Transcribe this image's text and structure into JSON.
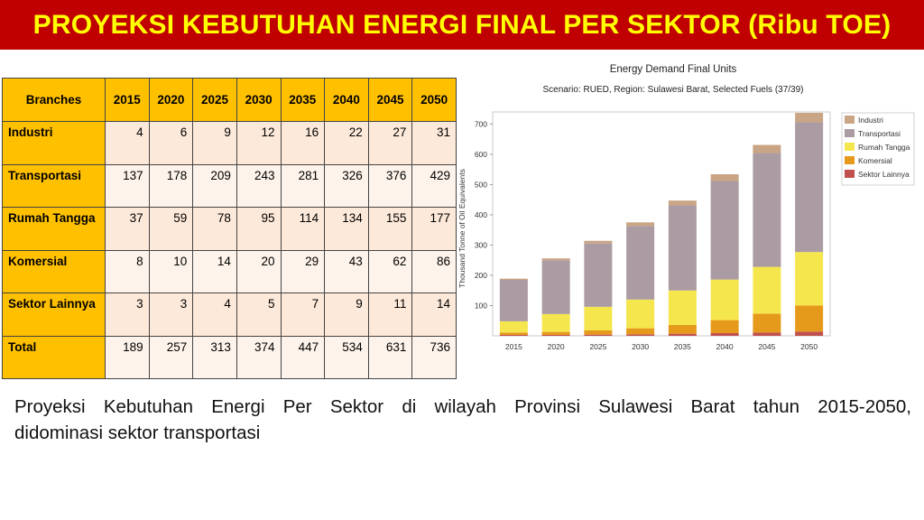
{
  "title": "PROYEKSI KEBUTUHAN ENERGI FINAL PER SEKTOR (Ribu TOE)",
  "table": {
    "header": [
      "Branches",
      "2015",
      "2020",
      "2025",
      "2030",
      "2035",
      "2040",
      "2045",
      "2050"
    ],
    "rows": [
      {
        "name": "Industri",
        "values": [
          "4",
          "6",
          "9",
          "12",
          "16",
          "22",
          "27",
          "31"
        ]
      },
      {
        "name": "Transportasi",
        "values": [
          "137",
          "178",
          "209",
          "243",
          "281",
          "326",
          "376",
          "429"
        ]
      },
      {
        "name": "Rumah Tangga",
        "values": [
          "37",
          "59",
          "78",
          "95",
          "114",
          "134",
          "155",
          "177"
        ]
      },
      {
        "name": "Komersial",
        "values": [
          "8",
          "10",
          "14",
          "20",
          "29",
          "43",
          "62",
          "86"
        ]
      },
      {
        "name": "Sektor Lainnya",
        "values": [
          "3",
          "3",
          "4",
          "5",
          "7",
          "9",
          "11",
          "14"
        ]
      },
      {
        "name": "Total",
        "values": [
          "189",
          "257",
          "313",
          "374",
          "447",
          "534",
          "631",
          "736"
        ]
      }
    ]
  },
  "chart_data": {
    "type": "bar",
    "stacked": true,
    "title": "Energy Demand Final Units",
    "subtitle": "Scenario: RUED, Region: Sulawesi Barat, Selected Fuels (37/39)",
    "xlabel": "",
    "ylabel": "Thousand Tonne of Oil Equivalents",
    "categories": [
      "2015",
      "2020",
      "2025",
      "2030",
      "2035",
      "2040",
      "2045",
      "2050"
    ],
    "ylim": [
      0,
      740
    ],
    "yticks": [
      100,
      200,
      300,
      400,
      500,
      600,
      700
    ],
    "grid": false,
    "legend_position": "right",
    "series": [
      {
        "name": "Sektor Lainnya",
        "color": "#c0504d",
        "values": [
          3,
          3,
          4,
          5,
          7,
          9,
          11,
          14
        ]
      },
      {
        "name": "Komersial",
        "color": "#e69a1c",
        "values": [
          8,
          10,
          14,
          20,
          29,
          43,
          62,
          86
        ]
      },
      {
        "name": "Rumah Tangga",
        "color": "#f5e64d",
        "values": [
          37,
          59,
          78,
          95,
          114,
          134,
          155,
          177
        ]
      },
      {
        "name": "Transportasi",
        "color": "#ab9ba2",
        "values": [
          137,
          178,
          209,
          243,
          281,
          326,
          376,
          429
        ]
      },
      {
        "name": "Industri",
        "color": "#c9a485",
        "values": [
          4,
          6,
          9,
          12,
          16,
          22,
          27,
          31
        ]
      }
    ]
  },
  "caption": {
    "line1": "Proyeksi Kebutuhan Energi Per Sektor di wilayah Provinsi Sulawesi Barat tahun 2015-2050,",
    "line2": "didominasi sektor transportasi"
  },
  "colors": {
    "banner_bg": "#c00000",
    "banner_text": "#ffff00",
    "table_header": "#ffc000"
  }
}
